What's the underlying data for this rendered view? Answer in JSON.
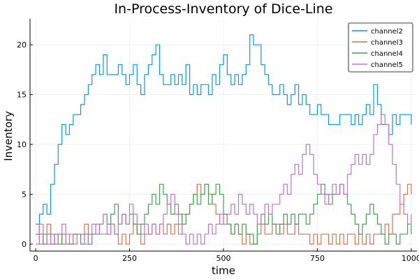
{
  "chart_data": {
    "type": "line",
    "title": "In-Process-Inventory of Dice-Line",
    "xlabel": "time",
    "ylabel": "Inventory",
    "xlim": [
      -15,
      1015
    ],
    "ylim": [
      -0.7,
      22.6
    ],
    "xticks": [
      0,
      250,
      500,
      750,
      1000
    ],
    "yticks": [
      0,
      5,
      10,
      15,
      20
    ],
    "grid": true,
    "legend_position": "top-right",
    "series": [
      {
        "name": "channel2",
        "color": "#009af9",
        "x": [
          0,
          10,
          20,
          30,
          40,
          50,
          60,
          70,
          80,
          90,
          100,
          110,
          120,
          130,
          140,
          150,
          160,
          170,
          180,
          190,
          200,
          210,
          220,
          230,
          240,
          250,
          260,
          270,
          280,
          290,
          300,
          310,
          320,
          330,
          340,
          350,
          360,
          370,
          380,
          390,
          400,
          410,
          420,
          430,
          440,
          450,
          460,
          470,
          480,
          490,
          500,
          510,
          520,
          530,
          540,
          550,
          560,
          570,
          580,
          590,
          600,
          610,
          620,
          630,
          640,
          650,
          660,
          670,
          680,
          690,
          700,
          710,
          720,
          730,
          740,
          750,
          760,
          770,
          780,
          790,
          800,
          810,
          820,
          830,
          840,
          850,
          860,
          870,
          880,
          890,
          900,
          910,
          920,
          930,
          940,
          950,
          960,
          970,
          980,
          990,
          1000
        ],
        "values": [
          1,
          3,
          4,
          3,
          6,
          8,
          10,
          12,
          11,
          12,
          13,
          13,
          14,
          15,
          16,
          17,
          18,
          17,
          19,
          17,
          17,
          17,
          18,
          17,
          16,
          17,
          18,
          16,
          15,
          17,
          18,
          19,
          20,
          17,
          16,
          16,
          17,
          16,
          17,
          16,
          18,
          15,
          16,
          15,
          16,
          16,
          15,
          17,
          16,
          18,
          19,
          17,
          16,
          17,
          16,
          17,
          18,
          21,
          20,
          20,
          18,
          17,
          16,
          15,
          15,
          16,
          15,
          14,
          15,
          16,
          14,
          15,
          14,
          13,
          13,
          14,
          13,
          13,
          12,
          12,
          12,
          13,
          13,
          13,
          12,
          13,
          12,
          13,
          14,
          13,
          16,
          14,
          12,
          12,
          11,
          13,
          12,
          13,
          13,
          13,
          12
        ]
      },
      {
        "name": "channel3",
        "color": "#e26f46",
        "x": [
          0,
          10,
          20,
          30,
          40,
          50,
          60,
          70,
          80,
          90,
          100,
          110,
          120,
          130,
          140,
          150,
          160,
          170,
          180,
          190,
          200,
          210,
          220,
          230,
          240,
          250,
          260,
          270,
          280,
          290,
          300,
          310,
          320,
          330,
          340,
          350,
          360,
          370,
          380,
          390,
          400,
          410,
          420,
          430,
          440,
          450,
          460,
          470,
          480,
          490,
          500,
          510,
          520,
          530,
          540,
          550,
          560,
          570,
          580,
          590,
          600,
          610,
          620,
          630,
          640,
          650,
          660,
          670,
          680,
          690,
          700,
          710,
          720,
          730,
          740,
          750,
          760,
          770,
          780,
          790,
          800,
          810,
          820,
          830,
          840,
          850,
          860,
          870,
          880,
          890,
          900,
          910,
          920,
          930,
          940,
          950,
          960,
          970,
          980,
          990,
          1000
        ],
        "values": [
          1,
          0,
          1,
          2,
          1,
          0,
          1,
          0,
          1,
          0,
          1,
          1,
          1,
          2,
          1,
          1,
          2,
          1,
          1,
          1,
          2,
          1,
          0,
          1,
          0,
          1,
          2,
          1,
          0,
          1,
          1,
          2,
          1,
          2,
          1,
          2,
          1,
          2,
          1,
          3,
          3,
          4,
          5,
          6,
          5,
          6,
          5,
          4,
          3,
          2,
          3,
          2,
          1,
          2,
          1,
          0,
          1,
          0,
          0,
          1,
          2,
          1,
          1,
          2,
          2,
          1,
          2,
          1,
          1,
          2,
          1,
          1,
          1,
          0,
          1,
          0,
          1,
          1,
          0,
          1,
          0,
          1,
          0,
          1,
          1,
          0,
          1,
          0,
          1,
          0,
          1,
          1,
          1,
          2,
          1,
          3,
          3,
          4,
          5,
          6,
          5
        ]
      },
      {
        "name": "channel4",
        "color": "#3ea44e",
        "x": [
          0,
          10,
          20,
          30,
          40,
          50,
          60,
          70,
          80,
          90,
          100,
          110,
          120,
          130,
          140,
          150,
          160,
          170,
          180,
          190,
          200,
          210,
          220,
          230,
          240,
          250,
          260,
          270,
          280,
          290,
          300,
          310,
          320,
          330,
          340,
          350,
          360,
          370,
          380,
          390,
          400,
          410,
          420,
          430,
          440,
          450,
          460,
          470,
          480,
          490,
          500,
          510,
          520,
          530,
          540,
          550,
          560,
          570,
          580,
          590,
          600,
          610,
          620,
          630,
          640,
          650,
          660,
          670,
          680,
          690,
          700,
          710,
          720,
          730,
          740,
          750,
          760,
          770,
          780,
          790,
          800,
          810,
          820,
          830,
          840,
          850,
          860,
          870,
          880,
          890,
          900,
          910,
          920,
          930,
          940,
          950,
          960,
          970,
          980,
          990,
          1000
        ],
        "values": [
          2,
          1,
          0,
          1,
          0,
          1,
          0,
          1,
          0,
          0,
          1,
          1,
          0,
          1,
          0,
          1,
          1,
          2,
          3,
          2,
          3,
          4,
          2,
          3,
          2,
          3,
          2,
          1,
          2,
          3,
          4,
          5,
          4,
          6,
          5,
          4,
          3,
          4,
          3,
          2,
          3,
          4,
          5,
          4,
          5,
          6,
          4,
          5,
          6,
          5,
          3,
          2,
          1,
          2,
          1,
          2,
          1,
          1,
          0,
          2,
          3,
          2,
          3,
          2,
          1,
          2,
          3,
          2,
          3,
          2,
          3,
          3,
          2,
          3,
          4,
          5,
          6,
          5,
          4,
          5,
          5,
          6,
          5,
          4,
          3,
          2,
          1,
          2,
          3,
          4,
          3,
          2,
          1,
          0,
          1,
          1,
          0,
          1,
          1,
          2,
          1
        ]
      },
      {
        "name": "channel5",
        "color": "#c271d2",
        "x": [
          0,
          10,
          20,
          30,
          40,
          50,
          60,
          70,
          80,
          90,
          100,
          110,
          120,
          130,
          140,
          150,
          160,
          170,
          180,
          190,
          200,
          210,
          220,
          230,
          240,
          250,
          260,
          270,
          280,
          290,
          300,
          310,
          320,
          330,
          340,
          350,
          360,
          370,
          380,
          390,
          400,
          410,
          420,
          430,
          440,
          450,
          460,
          470,
          480,
          490,
          500,
          510,
          520,
          530,
          540,
          550,
          560,
          570,
          580,
          590,
          600,
          610,
          620,
          630,
          640,
          650,
          660,
          670,
          680,
          690,
          700,
          710,
          720,
          730,
          740,
          750,
          760,
          770,
          780,
          790,
          800,
          810,
          820,
          830,
          840,
          850,
          860,
          870,
          880,
          890,
          900,
          910,
          920,
          930,
          940,
          950,
          960,
          970,
          980,
          990,
          1000
        ],
        "values": [
          0,
          2,
          1,
          0,
          1,
          0,
          1,
          2,
          0,
          1,
          0,
          1,
          1,
          0,
          1,
          2,
          1,
          2,
          3,
          1,
          2,
          1,
          2,
          3,
          2,
          4,
          3,
          2,
          1,
          2,
          1,
          2,
          1,
          2,
          3,
          4,
          5,
          3,
          2,
          1,
          0,
          1,
          0,
          1,
          0,
          1,
          2,
          1,
          2,
          3,
          2,
          3,
          4,
          3,
          5,
          4,
          3,
          4,
          3,
          2,
          3,
          4,
          3,
          4,
          4,
          5,
          6,
          5,
          7,
          8,
          7,
          9,
          10,
          9,
          7,
          6,
          5,
          4,
          5,
          6,
          5,
          6,
          5,
          7,
          8,
          9,
          8,
          9,
          8,
          9,
          11,
          12,
          13,
          12,
          10,
          8,
          6,
          4,
          3,
          2,
          3
        ]
      }
    ]
  }
}
